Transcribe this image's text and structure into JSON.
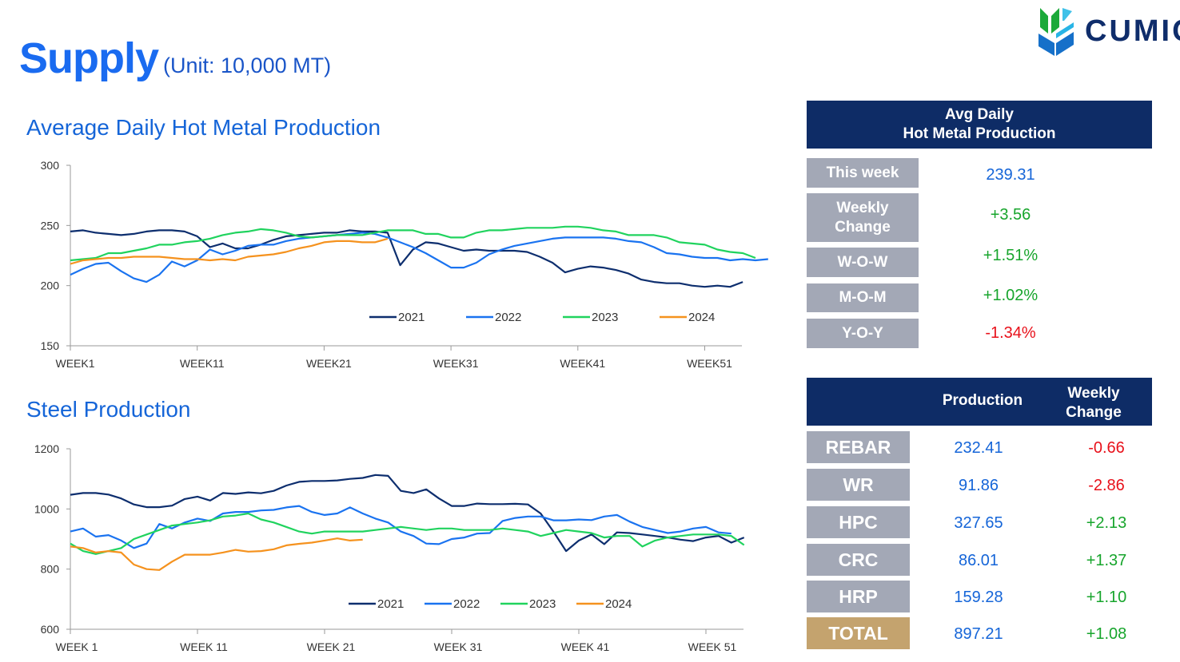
{
  "header": {
    "title": "Supply",
    "unit": "(Unit: 10,000 MT)",
    "logo_text": "CUMIC"
  },
  "colors": {
    "2021": "#0d2e6e",
    "2022": "#1a73f0",
    "2023": "#20d35e",
    "2024": "#f5921e",
    "positive": "#17a52c",
    "negative": "#e8101a",
    "value_blue": "#1565d8",
    "label_gray": "#a3a8b6",
    "total_gold": "#c4a36e",
    "header_navy": "#0e2c66"
  },
  "chart_data": [
    {
      "type": "line",
      "title": "Average Daily Hot Metal Production",
      "xlabel": "",
      "ylabel": "",
      "ylim": [
        150,
        300
      ],
      "yticks": [
        150,
        200,
        250,
        300
      ],
      "x_tick_labels": [
        {
          "week": 1,
          "label": "WEEK1"
        },
        {
          "week": 11,
          "label": "WEEK11"
        },
        {
          "week": 21,
          "label": "WEEK21"
        },
        {
          "week": 31,
          "label": "WEEK31"
        },
        {
          "week": 41,
          "label": "WEEK41"
        },
        {
          "week": 51,
          "label": "WEEK51"
        }
      ],
      "legend_position": "bottom-right",
      "series": [
        {
          "name": "2021",
          "start_week": 1,
          "values": [
            245,
            246,
            244,
            243,
            242,
            243,
            245,
            246,
            246,
            245,
            241,
            232,
            235,
            231,
            231,
            234,
            238,
            241,
            242,
            243,
            244,
            244,
            246,
            245,
            245,
            244,
            217,
            230,
            236,
            235,
            232,
            229,
            230,
            229,
            229,
            229,
            228,
            224,
            219,
            211,
            214,
            216,
            215,
            213,
            210,
            205,
            203,
            202,
            202,
            200,
            199,
            200,
            199,
            203
          ]
        },
        {
          "name": "2022",
          "start_week": 1,
          "values": [
            209,
            214,
            218,
            219,
            212,
            206,
            203,
            209,
            220,
            216,
            221,
            230,
            226,
            229,
            233,
            234,
            234,
            237,
            239,
            240,
            241,
            242,
            243,
            244,
            243,
            240,
            236,
            232,
            227,
            221,
            215,
            215,
            219,
            226,
            230,
            233,
            235,
            237,
            239,
            240,
            240,
            240,
            240,
            239,
            237,
            236,
            232,
            227,
            226,
            224,
            223,
            223,
            221,
            222,
            221,
            222
          ]
        },
        {
          "name": "2023",
          "start_week": 1,
          "values": [
            221,
            222,
            223,
            227,
            227,
            229,
            231,
            234,
            234,
            236,
            237,
            239,
            242,
            244,
            245,
            247,
            246,
            244,
            241,
            240,
            241,
            242,
            242,
            242,
            244,
            246,
            246,
            246,
            243,
            243,
            240,
            240,
            244,
            246,
            246,
            247,
            248,
            248,
            248,
            249,
            249,
            248,
            246,
            245,
            242,
            242,
            242,
            240,
            236,
            235,
            234,
            230,
            228,
            227,
            223
          ]
        },
        {
          "name": "2024",
          "start_week": 1,
          "values": [
            218,
            221,
            222,
            223,
            223,
            224,
            224,
            224,
            223,
            222,
            222,
            221,
            222,
            221,
            224,
            225,
            226,
            228,
            231,
            233,
            236,
            237,
            237,
            236,
            236,
            239
          ]
        }
      ]
    },
    {
      "type": "line",
      "title": "Steel Production",
      "xlabel": "",
      "ylabel": "",
      "ylim": [
        600,
        1200
      ],
      "yticks": [
        600,
        800,
        1000,
        1200
      ],
      "x_tick_labels": [
        {
          "week": 1,
          "label": "WEEK 1"
        },
        {
          "week": 11,
          "label": "WEEK 11"
        },
        {
          "week": 21,
          "label": "WEEK 21"
        },
        {
          "week": 31,
          "label": "WEEK 31"
        },
        {
          "week": 41,
          "label": "WEEK 41"
        },
        {
          "week": 51,
          "label": "WEEK 51"
        }
      ],
      "legend_position": "bottom-center",
      "series": [
        {
          "name": "2021",
          "start_week": 1,
          "values": [
            1047,
            1053,
            1053,
            1048,
            1035,
            1015,
            1006,
            1006,
            1011,
            1033,
            1041,
            1028,
            1053,
            1050,
            1055,
            1052,
            1060,
            1078,
            1090,
            1093,
            1093,
            1095,
            1100,
            1103,
            1113,
            1110,
            1060,
            1053,
            1065,
            1035,
            1010,
            1010,
            1018,
            1016,
            1016,
            1017,
            1015,
            985,
            925,
            860,
            895,
            915,
            883,
            922,
            920,
            915,
            910,
            905,
            898,
            893,
            905,
            910,
            888,
            905
          ]
        },
        {
          "name": "2022",
          "start_week": 1,
          "values": [
            925,
            935,
            908,
            913,
            895,
            870,
            885,
            950,
            935,
            955,
            968,
            960,
            985,
            990,
            990,
            995,
            997,
            1005,
            1010,
            990,
            980,
            985,
            1005,
            985,
            968,
            955,
            925,
            910,
            885,
            883,
            900,
            905,
            918,
            920,
            960,
            970,
            975,
            975,
            962,
            962,
            965,
            963,
            975,
            980,
            958,
            940,
            930,
            920,
            925,
            935,
            940,
            922,
            918
          ]
        },
        {
          "name": "2023",
          "start_week": 1,
          "values": [
            885,
            860,
            850,
            860,
            870,
            900,
            915,
            930,
            945,
            950,
            955,
            962,
            975,
            978,
            985,
            965,
            955,
            940,
            925,
            918,
            925,
            925,
            925,
            925,
            930,
            935,
            940,
            935,
            930,
            935,
            935,
            930,
            930,
            930,
            935,
            930,
            925,
            910,
            920,
            930,
            925,
            920,
            905,
            910,
            910,
            875,
            895,
            905,
            910,
            915,
            915,
            915,
            910,
            880
          ]
        },
        {
          "name": "2024",
          "start_week": 1,
          "values": [
            875,
            870,
            855,
            860,
            855,
            815,
            800,
            797,
            825,
            848,
            848,
            848,
            855,
            864,
            858,
            860,
            866,
            879,
            884,
            888,
            895,
            902,
            895,
            898
          ]
        }
      ]
    }
  ],
  "hot_metal_panel": {
    "title_line1": "Avg Daily",
    "title_line2": "Hot Metal Production",
    "rows": [
      {
        "label": "This week",
        "value": "239.31",
        "tone": "value_blue"
      },
      {
        "label": "Weekly Change",
        "value": "+3.56",
        "tone": "positive"
      },
      {
        "label": "W-O-W",
        "value": "+1.51%",
        "tone": "positive"
      },
      {
        "label": "M-O-M",
        "value": "+1.02%",
        "tone": "positive"
      },
      {
        "label": "Y-O-Y",
        "value": "-1.34%",
        "tone": "negative"
      }
    ]
  },
  "production_panel": {
    "col_production": "Production",
    "col_change_line1": "Weekly",
    "col_change_line2": "Change",
    "rows": [
      {
        "label": "REBAR",
        "production": "232.41",
        "change": "-0.66",
        "tone": "negative"
      },
      {
        "label": "WR",
        "production": "91.86",
        "change": "-2.86",
        "tone": "negative"
      },
      {
        "label": "HPC",
        "production": "327.65",
        "change": "+2.13",
        "tone": "positive"
      },
      {
        "label": "CRC",
        "production": "86.01",
        "change": "+1.37",
        "tone": "positive"
      },
      {
        "label": "HRP",
        "production": "159.28",
        "change": "+1.10",
        "tone": "positive"
      },
      {
        "label": "TOTAL",
        "production": "897.21",
        "change": "+1.08",
        "tone": "positive",
        "is_total": true
      }
    ]
  }
}
